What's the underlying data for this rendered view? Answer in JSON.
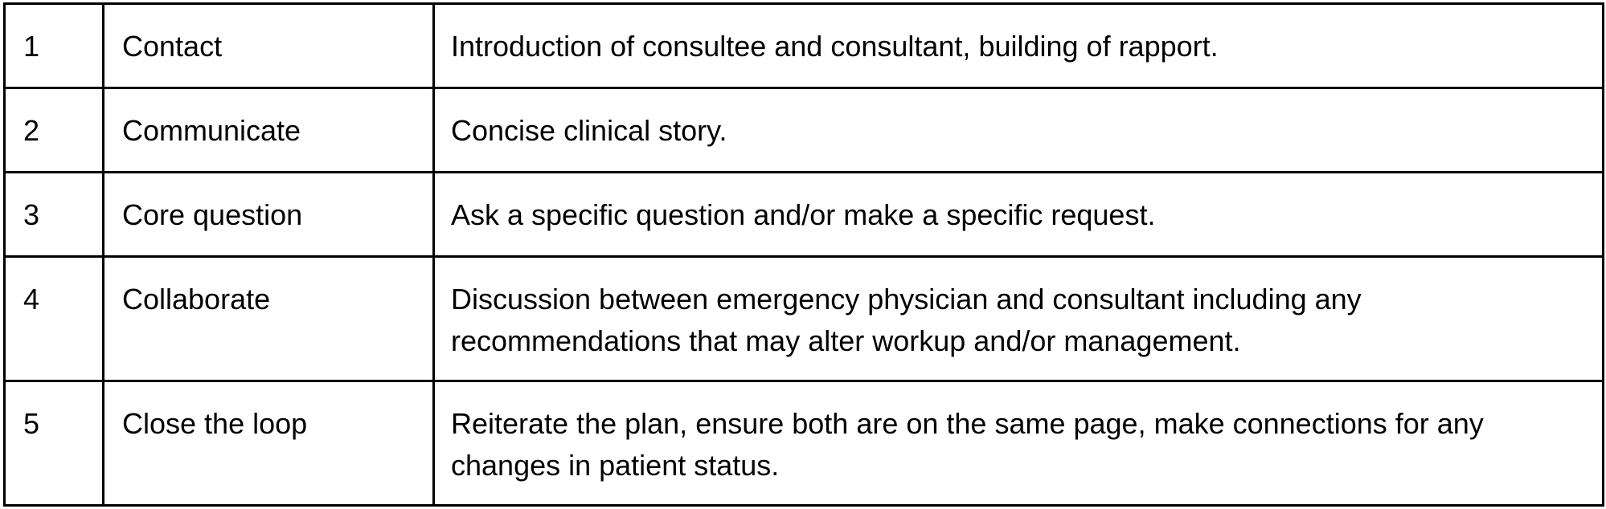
{
  "rows": [
    {
      "num": "1",
      "step": "Contact",
      "description": "Introduction of consultee and consultant, building of rapport."
    },
    {
      "num": "2",
      "step": "Communicate",
      "description": "Concise clinical story."
    },
    {
      "num": "3",
      "step": "Core question",
      "description": "Ask a specific question and/or make a specific request."
    },
    {
      "num": "4",
      "step": "Collaborate",
      "description": "Discussion between emergency physician and consultant including any recommendations that may alter workup and/or management."
    },
    {
      "num": "5",
      "step": "Close the loop",
      "description": "Reiterate the plan, ensure both are on the same page, make connections for any changes in patient status."
    }
  ]
}
